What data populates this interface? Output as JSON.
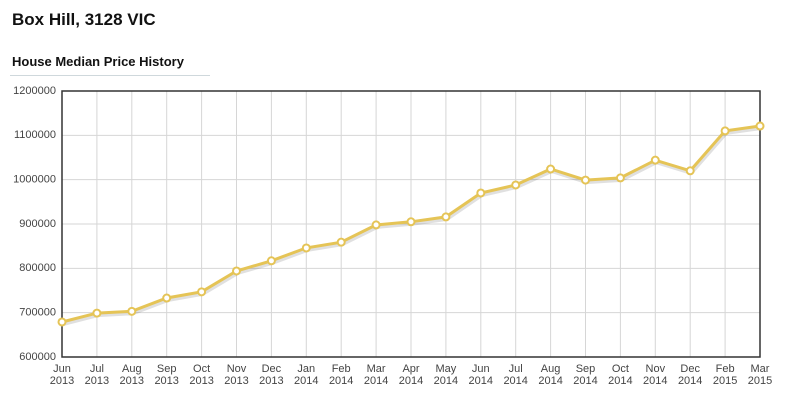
{
  "chart_data": {
    "type": "line",
    "title": "Box Hill, 3128 VIC",
    "subtitle": "House Median Price History",
    "categories": [
      "Jun 2013",
      "Jul 2013",
      "Aug 2013",
      "Sep 2013",
      "Oct 2013",
      "Nov 2013",
      "Dec 2013",
      "Jan 2014",
      "Feb 2014",
      "Mar 2014",
      "Apr 2014",
      "May 2014",
      "Jun 2014",
      "Jul 2014",
      "Aug 2014",
      "Sep 2014",
      "Oct 2014",
      "Nov 2014",
      "Dec 2014",
      "Feb 2015",
      "Mar 2015"
    ],
    "values": [
      679000,
      699000,
      703000,
      733000,
      747000,
      794000,
      817000,
      846000,
      859000,
      898000,
      905000,
      916000,
      970000,
      988000,
      1024000,
      999000,
      1004000,
      1044000,
      1020000,
      1110000,
      1121000
    ],
    "color": "#e5c456",
    "ylim": [
      600000,
      1200000
    ],
    "yticks": [
      600000,
      700000,
      800000,
      900000,
      1000000,
      1100000,
      1200000
    ],
    "grid": true
  }
}
